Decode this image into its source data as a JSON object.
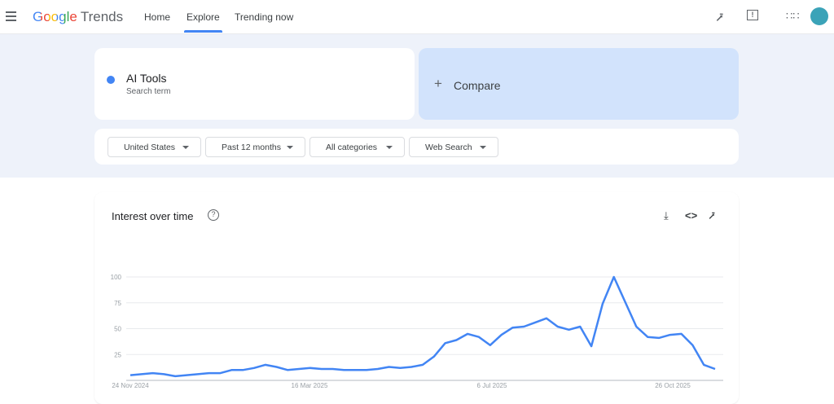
{
  "header": {
    "logo_google": "Google",
    "logo_trends": "Trends",
    "nav": [
      {
        "label": "Home"
      },
      {
        "label": "Explore",
        "active": true
      },
      {
        "label": "Trending now"
      }
    ],
    "avatar_color": "#3ba3b8"
  },
  "search": {
    "term": "AI Tools",
    "term_sub": "Search term",
    "term_color": "#4285f4",
    "compare_label": "Compare"
  },
  "filters": [
    {
      "label": "United States"
    },
    {
      "label": "Past 12 months"
    },
    {
      "label": "All categories"
    },
    {
      "label": "Web Search"
    }
  ],
  "chart_card": {
    "title": "Interest over time"
  },
  "chart_data": {
    "type": "line",
    "title": "Interest over time",
    "ylim": [
      0,
      100
    ],
    "yticks": [
      25,
      50,
      75,
      100
    ],
    "grid": true,
    "xtick_labels": [
      "24 Nov 2024",
      "16 Mar 2025",
      "6 Jul 2025",
      "26 Oct 2025"
    ],
    "series": [
      {
        "color": "#4285f4",
        "values": [
          5,
          6,
          7,
          6,
          4,
          5,
          6,
          7,
          7,
          10,
          10,
          12,
          15,
          13,
          10,
          11,
          12,
          11,
          11,
          10,
          10,
          10,
          11,
          13,
          12,
          13,
          15,
          23,
          36,
          39,
          45,
          42,
          34,
          44,
          51,
          52,
          56,
          60,
          52,
          49,
          52,
          33,
          74,
          100,
          76,
          52,
          42,
          41,
          44,
          45,
          34,
          15,
          11
        ]
      }
    ]
  }
}
